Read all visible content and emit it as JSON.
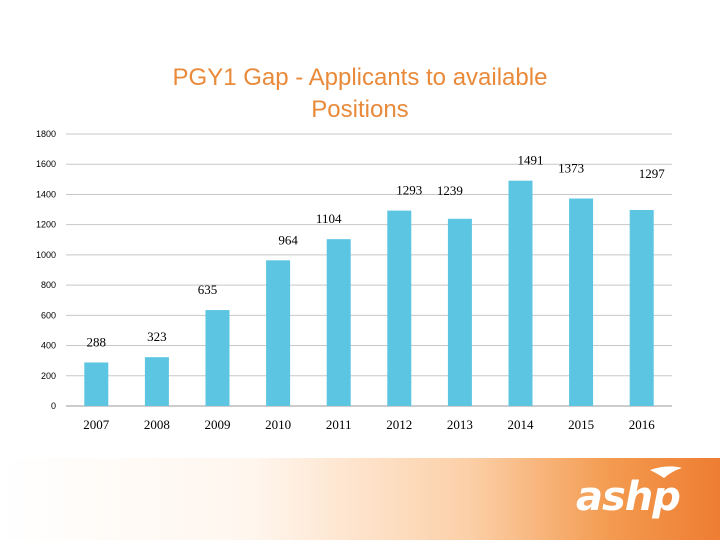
{
  "chart_data": {
    "type": "bar",
    "title": "PGY1 Gap - Applicants to available Positions",
    "categories": [
      "2007",
      "2008",
      "2009",
      "2010",
      "2011",
      "2012",
      "2013",
      "2014",
      "2015",
      "2016"
    ],
    "values": [
      288,
      323,
      635,
      964,
      1104,
      1293,
      1239,
      1491,
      1373,
      1297
    ],
    "data_labels": [
      "288",
      "323",
      "635",
      "964",
      "1104",
      "1293",
      "1239",
      "1491",
      "1373",
      "1297"
    ],
    "yticks": [
      "0",
      "200",
      "400",
      "600",
      "800",
      "1000",
      "1200",
      "1400",
      "1600",
      "1800"
    ],
    "ylim": [
      0,
      1800
    ],
    "xlabel": "",
    "ylabel": "",
    "grid": true,
    "bar_color": "#5bc5e2"
  },
  "branding": {
    "logo_text": "ashp",
    "accent_color": "#ee7d32"
  }
}
